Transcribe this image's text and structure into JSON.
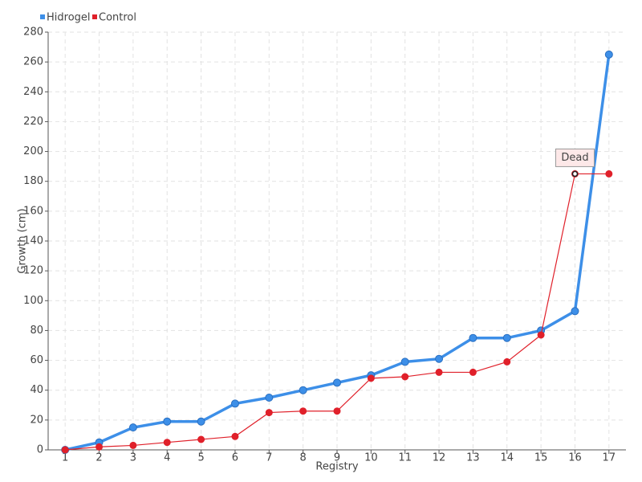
{
  "chart_data": {
    "type": "line",
    "x_label": "Registry",
    "y_label": "Growth (cm)",
    "categories": [
      "1",
      "2",
      "3",
      "4",
      "5",
      "6",
      "7",
      "8",
      "9",
      "10",
      "11",
      "12",
      "13",
      "14",
      "15",
      "16",
      "17"
    ],
    "series": [
      {
        "name": "Hidrogel",
        "color": "#3d8fe8",
        "values": [
          0,
          5,
          15,
          19,
          19,
          31,
          35,
          40,
          45,
          50,
          59,
          61,
          75,
          75,
          80,
          93,
          265
        ]
      },
      {
        "name": "Control",
        "color": "#e0202a",
        "values": [
          0,
          2,
          3,
          5,
          7,
          9,
          25,
          26,
          26,
          48,
          49,
          52,
          52,
          59,
          77,
          185,
          185
        ]
      }
    ],
    "annotations": [
      {
        "text": "Dead",
        "series": "Control",
        "category": "16"
      }
    ],
    "ylim": [
      0,
      280
    ],
    "yticks": [
      0,
      20,
      40,
      60,
      80,
      100,
      120,
      140,
      160,
      180,
      200,
      220,
      240,
      260,
      280
    ],
    "grid": true,
    "legend": "top-left"
  }
}
